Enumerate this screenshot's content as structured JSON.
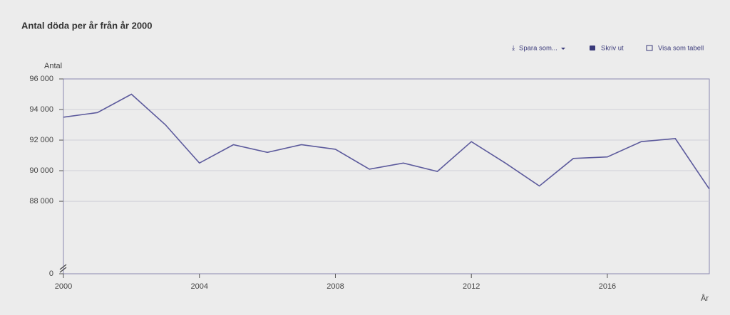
{
  "chart_data": {
    "type": "line",
    "title": "Antal döda per år från år 2000",
    "y_label": "Antal",
    "x_label": "År",
    "x": [
      2000,
      2001,
      2002,
      2003,
      2004,
      2005,
      2006,
      2007,
      2008,
      2009,
      2010,
      2011,
      2012,
      2013,
      2014,
      2015,
      2016,
      2017,
      2018,
      2019
    ],
    "series": [
      {
        "color": "#5c5a9c",
        "values": [
          93500,
          93800,
          95000,
          93000,
          90500,
          91700,
          91200,
          91700,
          91400,
          90100,
          90500,
          89950,
          91900,
          90500,
          89000,
          90800,
          90900,
          91900,
          92100,
          88800
        ]
      }
    ],
    "xlim": [
      2000,
      2019
    ],
    "xticks": [
      2000,
      2004,
      2008,
      2012,
      2016
    ],
    "ylim": [
      0,
      96000
    ],
    "yticks": [
      0,
      {
        "value": 88000,
        "label": "88 000"
      },
      {
        "value": 90000,
        "label": "90 000"
      },
      {
        "value": 92000,
        "label": "92 000"
      },
      {
        "value": 94000,
        "label": "94 000"
      },
      {
        "value": 96000,
        "label": "96 000"
      }
    ],
    "axis_break": true,
    "grid": true
  },
  "toolbar": [
    "Spara som...",
    "Skriv ut",
    "Visa som tabell"
  ]
}
